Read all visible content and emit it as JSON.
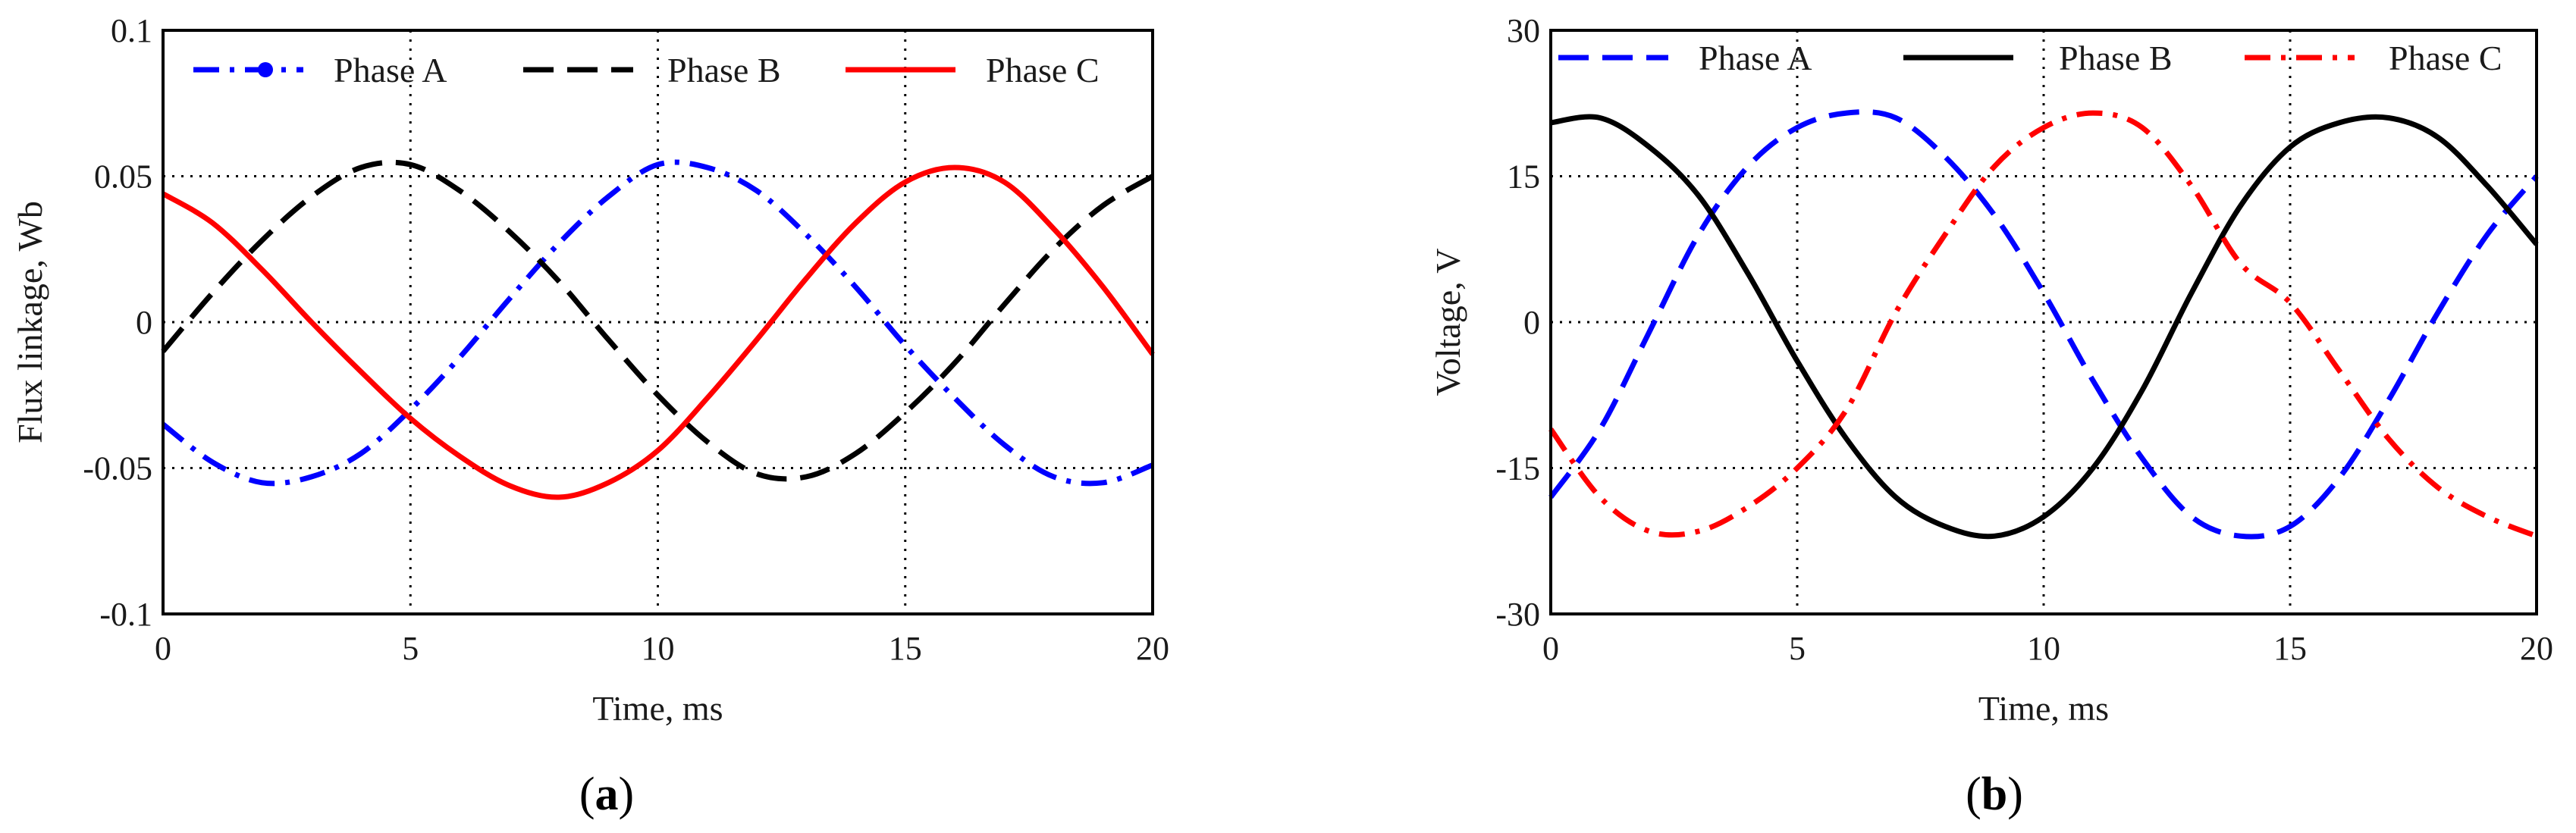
{
  "chart_data": [
    {
      "type": "line",
      "panel_label": "a",
      "xlabel": "Time, ms",
      "ylabel": "Flux linkage, Wb",
      "xlim": [
        0,
        20
      ],
      "ylim": [
        -0.1,
        0.1
      ],
      "x_ticks": [
        0,
        5,
        10,
        15,
        20
      ],
      "y_ticks": [
        -0.1,
        -0.05,
        0,
        0.05,
        0.1
      ],
      "x_tick_labels": [
        "0",
        "5",
        "10",
        "15",
        "20"
      ],
      "y_tick_labels": [
        "-0.1",
        "-0.05",
        "0",
        "0.05",
        "0.1"
      ],
      "grid": true,
      "legend_position": "top",
      "x": [
        0,
        1,
        2,
        3,
        4,
        5,
        6,
        7,
        8,
        9,
        10,
        11,
        12,
        13,
        14,
        15,
        16,
        17,
        18,
        19,
        20
      ],
      "series": [
        {
          "name": "Phase A",
          "color": "#0000ff",
          "style": "dash-dot",
          "values": [
            -0.035,
            -0.048,
            -0.055,
            -0.053,
            -0.045,
            -0.03,
            -0.012,
            0.008,
            0.027,
            0.043,
            0.054,
            0.053,
            0.045,
            0.03,
            0.012,
            -0.008,
            -0.026,
            -0.042,
            -0.053,
            -0.055,
            -0.049
          ]
        },
        {
          "name": "Phase B",
          "color": "#000000",
          "style": "dash",
          "values": [
            -0.01,
            0.01,
            0.028,
            0.043,
            0.053,
            0.054,
            0.045,
            0.031,
            0.014,
            -0.006,
            -0.025,
            -0.041,
            -0.052,
            -0.053,
            -0.045,
            -0.031,
            -0.014,
            0.006,
            0.025,
            0.04,
            0.05
          ]
        },
        {
          "name": "Phase C",
          "color": "#ff0000",
          "style": "solid",
          "values": [
            0.044,
            0.034,
            0.018,
            0.0,
            -0.017,
            -0.033,
            -0.046,
            -0.056,
            -0.06,
            -0.055,
            -0.044,
            -0.026,
            -0.006,
            0.015,
            0.034,
            0.048,
            0.053,
            0.048,
            0.032,
            0.012,
            -0.011
          ]
        }
      ]
    },
    {
      "type": "line",
      "panel_label": "b",
      "xlabel": "Time, ms",
      "ylabel": "Voltage, V",
      "xlim": [
        0,
        20
      ],
      "ylim": [
        -30,
        30
      ],
      "x_ticks": [
        0,
        5,
        10,
        15,
        20
      ],
      "y_ticks": [
        -30,
        -15,
        0,
        15,
        30
      ],
      "x_tick_labels": [
        "0",
        "5",
        "10",
        "15",
        "20"
      ],
      "y_tick_labels": [
        "-30",
        "-15",
        "0",
        "15",
        "30"
      ],
      "grid": true,
      "legend_position": "top",
      "x": [
        0,
        1,
        2,
        3,
        4,
        5,
        6,
        7,
        8,
        9,
        10,
        11,
        12,
        13,
        14,
        15,
        16,
        17,
        18,
        19,
        20
      ],
      "series": [
        {
          "name": "Phase A",
          "color": "#0000ff",
          "style": "dash",
          "values": [
            -18,
            -11,
            -1,
            9,
            16,
            20,
            21.5,
            21,
            17,
            11,
            3,
            -6,
            -14,
            -20,
            -22,
            -21,
            -16,
            -8,
            1,
            9,
            15
          ]
        },
        {
          "name": "Phase B",
          "color": "#000000",
          "style": "solid",
          "values": [
            20.5,
            21,
            18,
            13,
            5,
            -4,
            -12,
            -18,
            -21,
            -22,
            -20,
            -15,
            -7,
            3,
            12,
            18,
            20.5,
            21,
            19,
            14,
            8
          ]
        },
        {
          "name": "Phase C",
          "color": "#ff0000",
          "style": "dash-dot",
          "values": [
            -11,
            -18,
            -21.5,
            -21.5,
            -19,
            -15,
            -9,
            1,
            9,
            16,
            20,
            21.5,
            20,
            14,
            6,
            2,
            -5,
            -12,
            -17,
            -20,
            -22
          ]
        }
      ]
    }
  ]
}
